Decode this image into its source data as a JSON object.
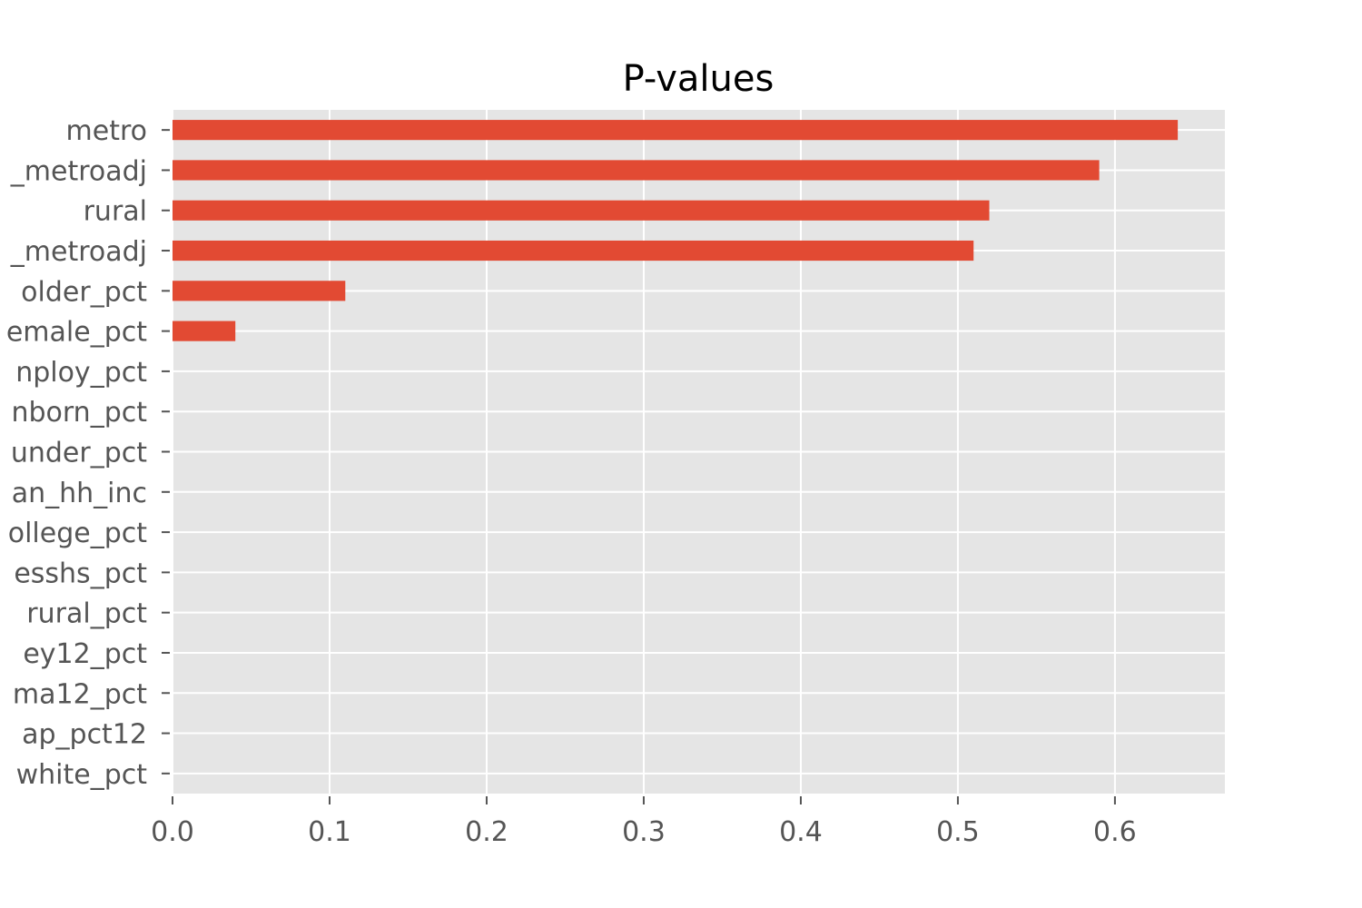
{
  "chart_data": {
    "type": "bar",
    "orientation": "horizontal",
    "title": "P-values",
    "xlabel": "",
    "ylabel": "",
    "xlim": [
      0,
      0.67
    ],
    "xticks": [
      0.0,
      0.1,
      0.2,
      0.3,
      0.4,
      0.5,
      0.6
    ],
    "xtick_labels": [
      "0.0",
      "0.1",
      "0.2",
      "0.3",
      "0.4",
      "0.5",
      "0.6"
    ],
    "grid": true,
    "categories": [
      "metro",
      "_metroadj",
      "rural",
      "_metroadj",
      "older_pct",
      "emale_pct",
      "nploy_pct",
      "nborn_pct",
      "under_pct",
      "an_hh_inc",
      "ollege_pct",
      "esshs_pct",
      "rural_pct",
      "ey12_pct",
      "ma12_pct",
      "ap_pct12",
      "white_pct"
    ],
    "values": [
      0.64,
      0.59,
      0.52,
      0.51,
      0.11,
      0.04,
      0.0,
      0.0,
      0.0,
      0.0,
      0.0,
      0.0,
      0.0,
      0.0,
      0.0,
      0.0,
      0.0
    ],
    "colors": {
      "bar": "#E24A33",
      "background": "#E5E5E5",
      "grid": "#FFFFFF",
      "text": "#555555"
    }
  }
}
